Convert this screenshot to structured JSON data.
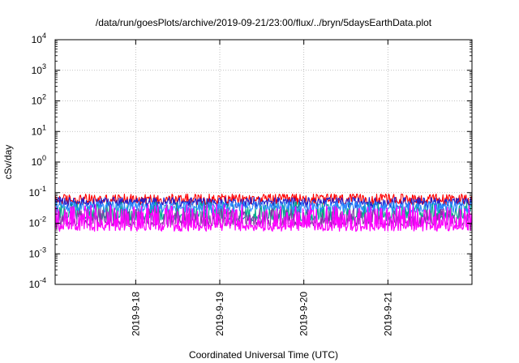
{
  "chart_data": {
    "type": "line",
    "title": "/data/run/goesPlots/archive/2019-09-21/23:00/flux/../bryn/5daysEarthData.plot",
    "xlabel": "Coordinated Universal Time (UTC)",
    "ylabel": "cSv/day",
    "y_scale": "log",
    "ylim": [
      0.0001,
      10000
    ],
    "y_ticks": [
      {
        "value": 0.0001,
        "base": "10",
        "exp": "-4"
      },
      {
        "value": 0.001,
        "base": "10",
        "exp": "-3"
      },
      {
        "value": 0.01,
        "base": "10",
        "exp": "-2"
      },
      {
        "value": 0.1,
        "base": "10",
        "exp": "-1"
      },
      {
        "value": 1,
        "base": "10",
        "exp": "0"
      },
      {
        "value": 10,
        "base": "10",
        "exp": "1"
      },
      {
        "value": 100,
        "base": "10",
        "exp": "2"
      },
      {
        "value": 1000,
        "base": "10",
        "exp": "3"
      },
      {
        "value": 10000,
        "base": "10",
        "exp": "4"
      }
    ],
    "xlim": [
      "2019-09-17T01:00",
      "2019-09-22T00:00"
    ],
    "x_ticks": [
      {
        "value": "2019-09-18T00:00",
        "label": "2019-9-18"
      },
      {
        "value": "2019-09-19T00:00",
        "label": "2019-9-19"
      },
      {
        "value": "2019-09-20T00:00",
        "label": "2019-9-20"
      },
      {
        "value": "2019-09-21T00:00",
        "label": "2019-9-21"
      }
    ],
    "grid": true,
    "legend": "none",
    "series": [
      {
        "color": "#ff0000",
        "low": 0.04,
        "high": 0.09
      },
      {
        "color": "#2020cc",
        "low": 0.032,
        "high": 0.07
      },
      {
        "color": "#00aa88",
        "low": 0.012,
        "high": 0.05
      },
      {
        "color": "#2b8cff",
        "low": 0.022,
        "high": 0.05
      },
      {
        "color": "#8833aa",
        "low": 0.008,
        "high": 0.03
      },
      {
        "color": "#ff00ff",
        "low": 0.0055,
        "high": 0.04
      }
    ]
  }
}
